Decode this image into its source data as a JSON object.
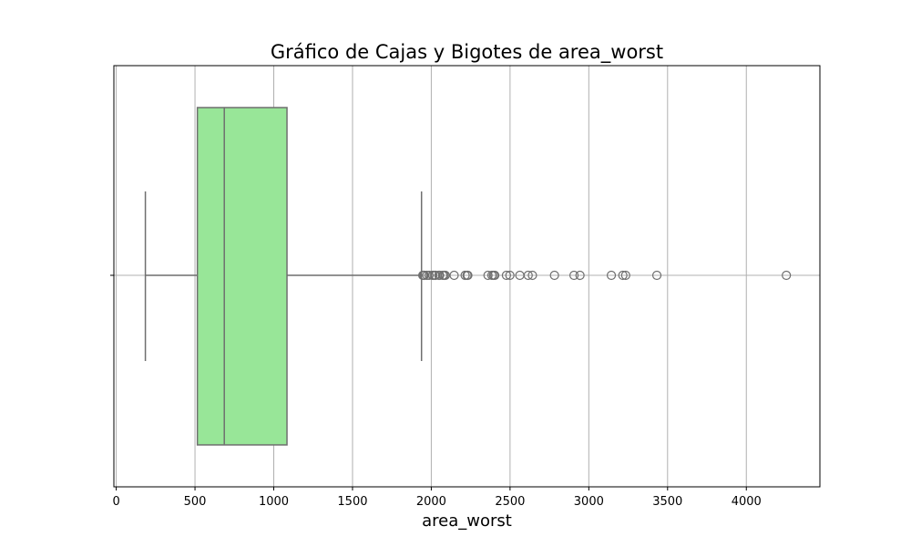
{
  "chart_data": {
    "type": "boxplot",
    "title": "Gráfico de Cajas y Bigotes de area_worst",
    "xlabel": "area_worst",
    "ylabel": "",
    "xlim": [
      -15,
      4467
    ],
    "xticks": [
      0,
      500,
      1000,
      1500,
      2000,
      2500,
      3000,
      3500,
      4000
    ],
    "xtick_labels": [
      "0",
      "500",
      "1000",
      "1500",
      "2000",
      "2500",
      "3000",
      "3500",
      "4000"
    ],
    "grid": true,
    "orientation": "horizontal",
    "box": {
      "whisker_low": 185,
      "q1": 515,
      "median": 686,
      "q3": 1084,
      "whisker_high": 1938
    },
    "outliers": [
      1946,
      1952,
      1956,
      1972,
      1986,
      2009,
      2010,
      2022,
      2027,
      2048,
      2053,
      2073,
      2081,
      2089,
      2145,
      2215,
      2227,
      2232,
      2360,
      2385,
      2395,
      2403,
      2477,
      2499,
      2562,
      2615,
      2642,
      2782,
      2906,
      2944,
      3143,
      3216,
      3234,
      3432,
      4254
    ],
    "colors": {
      "box_fill": "#98e698",
      "box_edge": "#6f6f6f",
      "grid": "#b0b0b0",
      "axis": "#000000"
    }
  }
}
